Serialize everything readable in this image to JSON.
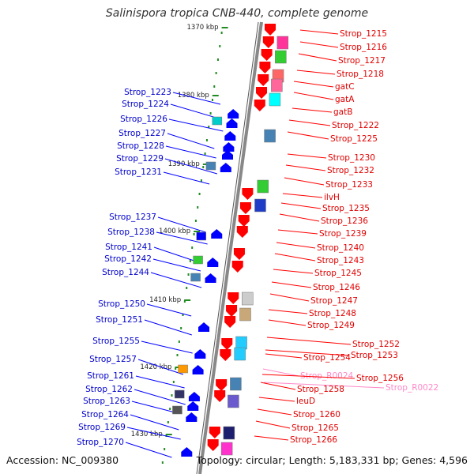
{
  "header": {
    "title": "Salinispora tropica CNB-440, complete genome"
  },
  "footer": {
    "accession": "Accession: NC_009380",
    "summary": "Topology: circular; Length: 5,183,331 bp; Genes: 4,596"
  },
  "colors": {
    "left_strand": "#0000ff",
    "right_strand": "#ff0000",
    "rna": "#ff88c8",
    "backbone": "#888888",
    "ticks": "#228b22"
  },
  "kbp_ticks": [
    "1370 kbp",
    "1380 kbp",
    "1390 kbp",
    "1400 kbp",
    "1410 kbp",
    "1420 kbp",
    "1430 kbp"
  ],
  "left_genes": [
    "Strop_1223",
    "Strop_1224",
    "Strop_1226",
    "Strop_1227",
    "Strop_1228",
    "Strop_1229",
    "Strop_1231",
    "Strop_1237",
    "Strop_1238",
    "Strop_1241",
    "Strop_1242",
    "Strop_1244",
    "Strop_1250",
    "Strop_1251",
    "Strop_1255",
    "Strop_1257",
    "Strop_1261",
    "Strop_1262",
    "Strop_1263",
    "Strop_1264",
    "Strop_1269",
    "Strop_1270"
  ],
  "right_genes": [
    "Strop_1215",
    "Strop_1216",
    "Strop_1217",
    "Strop_1218",
    "gatC",
    "gatA",
    "gatB",
    "Strop_1222",
    "Strop_1225",
    "Strop_1230",
    "Strop_1232",
    "Strop_1233",
    "ilvH",
    "Strop_1235",
    "Strop_1236",
    "Strop_1239",
    "Strop_1240",
    "Strop_1243",
    "Strop_1245",
    "Strop_1246",
    "Strop_1247",
    "Strop_1248",
    "Strop_1249",
    "Strop_1252",
    "Strop_1254",
    "Strop_1253",
    "Strop_R0024",
    "Strop_1256",
    "Strop_R0022",
    "Strop_1258",
    "leuD",
    "Strop_1260",
    "Strop_1265",
    "Strop_1266"
  ]
}
